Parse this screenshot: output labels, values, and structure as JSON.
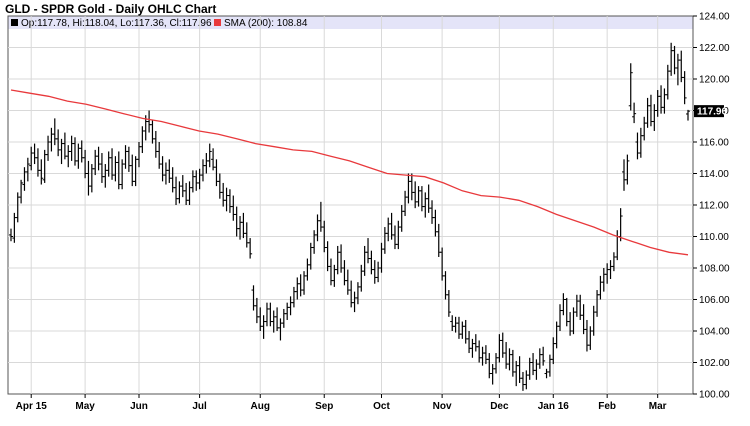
{
  "header": {
    "title": "GLD - SPDR Gold - Daily OHLC Chart",
    "ohlc_legend": "Op:117.78, Hi:118.04, Lo:117.36, Cl:117.96",
    "sma_legend": "SMA (200): 108.84"
  },
  "colors": {
    "background": "#ffffff",
    "legend_band": "#e4e4f8",
    "grid": "#d9d9d9",
    "ohlc": "#000000",
    "sma": "#e8393c",
    "last_price_bg": "#000000"
  },
  "last_price_label": "117.96",
  "chart_data": {
    "type": "ohlc",
    "title": "GLD - SPDR Gold - Daily OHLC Chart",
    "ylim": [
      100,
      124
    ],
    "y_ticks": [
      "124.00",
      "122.00",
      "120.00",
      "118.00",
      "116.00",
      "114.00",
      "112.00",
      "110.00",
      "108.00",
      "106.00",
      "104.00",
      "102.00",
      "100.00"
    ],
    "x_ticks": [
      "Apr 15",
      "May",
      "Jun",
      "Jul",
      "Aug",
      "Sep",
      "Oct",
      "Nov",
      "Dec",
      "Jan 16",
      "Feb",
      "Mar"
    ],
    "x_tick_index": [
      6,
      22,
      38,
      56,
      74,
      93,
      110,
      128,
      145,
      161,
      177,
      192
    ],
    "grid": true,
    "sma_period": 200,
    "sma": [
      119.3,
      119.1,
      118.9,
      118.6,
      118.4,
      118.1,
      117.8,
      117.5,
      117.3,
      117.0,
      116.7,
      116.5,
      116.2,
      115.9,
      115.7,
      115.5,
      115.4,
      115.1,
      114.8,
      114.4,
      114.0,
      113.9,
      113.8,
      113.4,
      112.9,
      112.6,
      112.5,
      112.3,
      111.9,
      111.4,
      111.0,
      110.6,
      110.1,
      109.7,
      109.3,
      109.0,
      108.84
    ],
    "ohlc": [
      [
        110.1,
        110.5,
        109.7,
        110.0
      ],
      [
        109.9,
        111.5,
        109.6,
        111.2
      ],
      [
        111.2,
        112.8,
        110.9,
        112.5
      ],
      [
        112.5,
        113.6,
        112.1,
        113.4
      ],
      [
        113.3,
        114.4,
        112.9,
        114.1
      ],
      [
        114.1,
        115.0,
        113.5,
        114.6
      ],
      [
        114.5,
        115.7,
        114.2,
        115.3
      ],
      [
        115.3,
        115.9,
        114.6,
        115.0
      ],
      [
        115.0,
        115.6,
        113.8,
        114.2
      ],
      [
        114.2,
        114.9,
        113.3,
        113.7
      ],
      [
        113.6,
        115.5,
        113.4,
        115.2
      ],
      [
        115.2,
        116.4,
        114.8,
        116.0
      ],
      [
        116.0,
        116.9,
        115.4,
        116.5
      ],
      [
        116.5,
        117.5,
        115.8,
        116.2
      ],
      [
        116.2,
        116.8,
        115.1,
        115.5
      ],
      [
        115.5,
        116.2,
        114.6,
        115.9
      ],
      [
        115.9,
        116.6,
        114.9,
        115.1
      ],
      [
        115.1,
        115.8,
        114.4,
        115.4
      ],
      [
        115.4,
        116.4,
        114.8,
        115.9
      ],
      [
        115.9,
        116.3,
        114.5,
        114.8
      ],
      [
        114.8,
        115.9,
        114.3,
        115.6
      ],
      [
        115.6,
        116.1,
        114.7,
        115.0
      ],
      [
        115.0,
        115.5,
        113.7,
        114.0
      ],
      [
        114.0,
        114.8,
        112.6,
        113.2
      ],
      [
        113.2,
        114.6,
        112.8,
        114.3
      ],
      [
        114.3,
        115.5,
        113.9,
        115.1
      ],
      [
        115.1,
        115.7,
        114.2,
        114.6
      ],
      [
        114.6,
        115.3,
        113.4,
        113.8
      ],
      [
        113.8,
        114.6,
        113.1,
        114.2
      ],
      [
        114.2,
        115.4,
        113.8,
        115.0
      ],
      [
        115.0,
        115.6,
        113.6,
        113.9
      ],
      [
        113.9,
        115.1,
        113.5,
        114.7
      ],
      [
        114.7,
        115.4,
        113.0,
        113.3
      ],
      [
        113.3,
        114.9,
        113.0,
        114.6
      ],
      [
        114.6,
        115.8,
        114.3,
        115.4
      ],
      [
        115.4,
        115.7,
        114.1,
        114.5
      ],
      [
        114.5,
        115.2,
        113.2,
        113.5
      ],
      [
        113.5,
        115.1,
        113.2,
        114.9
      ],
      [
        114.9,
        116.0,
        114.4,
        115.7
      ],
      [
        115.7,
        117.0,
        115.3,
        116.7
      ],
      [
        116.7,
        117.7,
        116.1,
        117.3
      ],
      [
        117.3,
        118.0,
        116.6,
        117.1
      ],
      [
        117.1,
        117.4,
        115.9,
        116.2
      ],
      [
        116.2,
        116.7,
        115.0,
        115.4
      ],
      [
        115.4,
        116.0,
        114.3,
        114.6
      ],
      [
        114.6,
        115.1,
        113.5,
        113.9
      ],
      [
        113.9,
        114.7,
        113.3,
        114.2
      ],
      [
        114.2,
        114.9,
        113.4,
        113.7
      ],
      [
        113.7,
        114.4,
        112.8,
        113.1
      ],
      [
        113.1,
        113.8,
        112.0,
        112.4
      ],
      [
        112.4,
        113.5,
        112.1,
        113.2
      ],
      [
        113.2,
        113.9,
        112.5,
        112.9
      ],
      [
        112.9,
        113.4,
        112.0,
        112.3
      ],
      [
        112.3,
        113.5,
        112.0,
        113.1
      ],
      [
        113.1,
        114.2,
        112.8,
        113.8
      ],
      [
        113.8,
        114.2,
        112.9,
        113.4
      ],
      [
        113.4,
        114.3,
        113.0,
        113.9
      ],
      [
        113.9,
        114.9,
        113.5,
        114.5
      ],
      [
        114.5,
        115.3,
        114.0,
        114.8
      ],
      [
        114.8,
        115.9,
        114.4,
        115.4
      ],
      [
        114.9,
        115.6,
        114.2,
        114.4
      ],
      [
        114.4,
        114.9,
        113.2,
        113.5
      ],
      [
        113.5,
        114.0,
        112.4,
        112.8
      ],
      [
        112.8,
        113.4,
        111.9,
        112.3
      ],
      [
        112.3,
        113.1,
        111.6,
        112.6
      ],
      [
        112.6,
        113.0,
        111.5,
        111.9
      ],
      [
        111.9,
        112.6,
        111.0,
        111.4
      ],
      [
        111.4,
        111.9,
        110.0,
        110.5
      ],
      [
        110.5,
        111.3,
        109.8,
        110.9
      ],
      [
        110.9,
        111.5,
        109.9,
        110.2
      ],
      [
        110.2,
        110.9,
        109.3,
        109.6
      ],
      [
        109.6,
        109.9,
        108.6,
        108.9
      ],
      [
        106.6,
        106.9,
        105.3,
        105.6
      ],
      [
        105.6,
        106.1,
        104.5,
        104.9
      ],
      [
        104.9,
        105.5,
        104.0,
        104.3
      ],
      [
        104.3,
        105.0,
        103.5,
        104.6
      ],
      [
        104.6,
        105.8,
        104.3,
        105.4
      ],
      [
        105.4,
        105.8,
        104.3,
        104.6
      ],
      [
        104.6,
        105.3,
        103.9,
        104.9
      ],
      [
        104.9,
        105.5,
        104.0,
        104.2
      ],
      [
        104.2,
        104.8,
        103.4,
        104.5
      ],
      [
        104.5,
        105.4,
        104.2,
        105.1
      ],
      [
        105.1,
        105.8,
        104.7,
        105.5
      ],
      [
        105.5,
        106.2,
        105.0,
        105.8
      ],
      [
        105.8,
        106.8,
        105.5,
        106.5
      ],
      [
        106.5,
        107.4,
        106.0,
        107.0
      ],
      [
        107.0,
        107.6,
        106.2,
        106.6
      ],
      [
        106.6,
        107.8,
        106.3,
        107.5
      ],
      [
        107.5,
        108.6,
        107.2,
        108.2
      ],
      [
        108.2,
        109.6,
        107.9,
        109.3
      ],
      [
        109.3,
        110.4,
        108.9,
        110.1
      ],
      [
        110.1,
        111.4,
        109.7,
        111.0
      ],
      [
        111.0,
        112.2,
        110.3,
        110.6
      ],
      [
        110.6,
        111.0,
        109.0,
        109.3
      ],
      [
        109.3,
        109.7,
        107.8,
        108.1
      ],
      [
        108.1,
        108.6,
        106.9,
        107.2
      ],
      [
        107.2,
        108.2,
        106.8,
        107.9
      ],
      [
        107.9,
        109.4,
        107.6,
        109.0
      ],
      [
        109.0,
        109.5,
        107.7,
        108.0
      ],
      [
        108.0,
        108.5,
        106.9,
        107.2
      ],
      [
        107.2,
        107.9,
        106.3,
        106.6
      ],
      [
        106.6,
        107.2,
        105.5,
        105.8
      ],
      [
        105.8,
        106.5,
        105.2,
        106.1
      ],
      [
        106.1,
        107.1,
        105.7,
        106.8
      ],
      [
        106.8,
        108.2,
        106.5,
        107.8
      ],
      [
        107.8,
        109.4,
        107.5,
        109.0
      ],
      [
        109.0,
        109.9,
        108.3,
        108.6
      ],
      [
        108.6,
        109.1,
        107.6,
        107.9
      ],
      [
        107.9,
        108.5,
        107.0,
        107.4
      ],
      [
        107.4,
        108.4,
        107.1,
        108.0
      ],
      [
        108.0,
        109.6,
        107.7,
        109.2
      ],
      [
        109.2,
        110.6,
        108.9,
        110.2
      ],
      [
        110.2,
        111.2,
        109.7,
        110.8
      ],
      [
        110.8,
        111.5,
        109.8,
        110.1
      ],
      [
        110.1,
        110.7,
        109.2,
        109.5
      ],
      [
        109.5,
        111.0,
        109.2,
        110.6
      ],
      [
        110.6,
        112.0,
        110.3,
        111.6
      ],
      [
        111.6,
        112.9,
        111.3,
        112.5
      ],
      [
        112.5,
        114.0,
        112.1,
        113.5
      ],
      [
        113.5,
        114.0,
        112.3,
        112.8
      ],
      [
        112.8,
        113.5,
        111.8,
        112.2
      ],
      [
        112.2,
        113.2,
        111.9,
        112.9
      ],
      [
        112.9,
        113.2,
        111.6,
        111.9
      ],
      [
        111.9,
        112.8,
        111.2,
        112.4
      ],
      [
        112.4,
        113.3,
        111.5,
        111.8
      ],
      [
        111.8,
        112.3,
        110.8,
        111.2
      ],
      [
        111.2,
        111.7,
        110.0,
        110.3
      ],
      [
        110.3,
        110.8,
        108.7,
        109.0
      ],
      [
        109.0,
        109.3,
        107.2,
        107.5
      ],
      [
        107.5,
        107.8,
        106.0,
        106.3
      ],
      [
        106.3,
        106.6,
        104.9,
        105.2
      ],
      [
        104.6,
        105.0,
        104.0,
        104.3
      ],
      [
        104.3,
        104.9,
        103.9,
        104.5
      ],
      [
        104.5,
        104.9,
        103.5,
        103.8
      ],
      [
        103.8,
        104.6,
        103.5,
        104.3
      ],
      [
        104.3,
        104.7,
        103.2,
        103.5
      ],
      [
        103.5,
        104.0,
        102.6,
        102.9
      ],
      [
        102.9,
        103.5,
        102.3,
        103.2
      ],
      [
        103.2,
        103.8,
        102.7,
        103.0
      ],
      [
        103.0,
        103.4,
        102.0,
        102.3
      ],
      [
        102.3,
        103.0,
        101.8,
        102.6
      ],
      [
        102.6,
        103.1,
        101.9,
        102.2
      ],
      [
        102.2,
        102.6,
        101.0,
        101.3
      ],
      [
        101.3,
        101.9,
        100.6,
        101.6
      ],
      [
        101.6,
        102.6,
        101.3,
        102.3
      ],
      [
        102.3,
        103.8,
        102.0,
        103.4
      ],
      [
        103.4,
        103.9,
        102.3,
        102.6
      ],
      [
        102.6,
        103.3,
        101.6,
        101.9
      ],
      [
        101.9,
        102.9,
        101.5,
        102.5
      ],
      [
        102.5,
        102.8,
        101.1,
        101.4
      ],
      [
        101.4,
        102.1,
        100.5,
        101.8
      ],
      [
        101.8,
        102.4,
        100.7,
        101.0
      ],
      [
        101.0,
        101.4,
        100.2,
        100.6
      ],
      [
        100.6,
        101.5,
        100.3,
        101.2
      ],
      [
        101.2,
        102.3,
        100.9,
        102.0
      ],
      [
        102.0,
        102.6,
        101.2,
        101.5
      ],
      [
        101.5,
        102.2,
        100.9,
        101.9
      ],
      [
        101.9,
        102.9,
        101.6,
        102.5
      ],
      [
        102.5,
        103.0,
        101.8,
        102.1
      ],
      [
        101.3,
        101.6,
        101.0,
        101.4
      ],
      [
        101.4,
        102.5,
        101.1,
        102.2
      ],
      [
        102.2,
        103.6,
        101.9,
        103.2
      ],
      [
        103.2,
        104.6,
        102.9,
        104.3
      ],
      [
        104.3,
        105.7,
        104.0,
        105.3
      ],
      [
        105.3,
        106.4,
        105.0,
        106.0
      ],
      [
        106.0,
        106.1,
        104.3,
        104.6
      ],
      [
        104.6,
        105.2,
        103.7,
        104.0
      ],
      [
        104.0,
        105.5,
        103.8,
        105.2
      ],
      [
        105.2,
        106.3,
        104.9,
        105.9
      ],
      [
        105.9,
        106.3,
        104.7,
        105.0
      ],
      [
        105.0,
        105.7,
        103.8,
        104.1
      ],
      [
        104.1,
        104.7,
        102.7,
        103.1
      ],
      [
        103.1,
        104.3,
        102.8,
        104.0
      ],
      [
        104.0,
        105.6,
        103.7,
        105.2
      ],
      [
        105.2,
        106.6,
        104.9,
        106.3
      ],
      [
        106.3,
        107.5,
        106.0,
        107.1
      ],
      [
        107.1,
        108.0,
        106.5,
        107.6
      ],
      [
        107.6,
        108.3,
        107.0,
        107.9
      ],
      [
        107.9,
        108.5,
        107.3,
        108.1
      ],
      [
        108.1,
        109.0,
        107.8,
        108.7
      ],
      [
        108.7,
        110.4,
        108.5,
        110.0
      ],
      [
        110.0,
        111.8,
        109.7,
        111.3
      ],
      [
        114.1,
        114.9,
        112.9,
        113.6
      ],
      [
        113.6,
        115.2,
        113.3,
        114.8
      ],
      [
        118.3,
        121.0,
        118.0,
        120.4
      ],
      [
        117.6,
        118.5,
        117.2,
        117.8
      ],
      [
        116.0,
        116.6,
        114.9,
        115.3
      ],
      [
        115.3,
        116.9,
        115.0,
        116.4
      ],
      [
        116.4,
        117.6,
        116.1,
        117.2
      ],
      [
        117.2,
        118.8,
        116.9,
        118.3
      ],
      [
        118.3,
        119.0,
        117.0,
        117.3
      ],
      [
        117.3,
        118.4,
        116.7,
        118.0
      ],
      [
        118.0,
        119.3,
        117.6,
        118.9
      ],
      [
        118.9,
        119.6,
        117.8,
        118.2
      ],
      [
        118.2,
        119.4,
        117.8,
        119.0
      ],
      [
        119.0,
        120.9,
        118.7,
        120.5
      ],
      [
        120.5,
        122.3,
        120.2,
        121.8
      ],
      [
        121.8,
        122.1,
        120.3,
        120.7
      ],
      [
        120.7,
        121.6,
        119.6,
        121.2
      ],
      [
        121.2,
        121.8,
        119.8,
        120.1
      ],
      [
        120.1,
        120.5,
        118.4,
        118.8
      ],
      [
        117.78,
        118.04,
        117.36,
        117.96
      ]
    ]
  }
}
